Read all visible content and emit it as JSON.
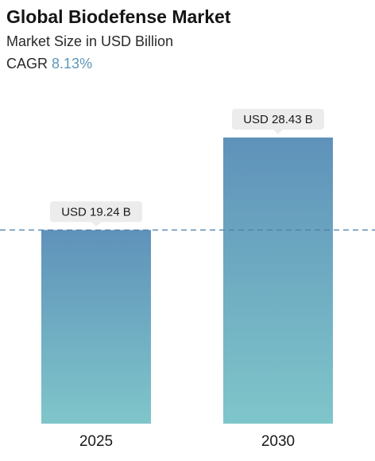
{
  "header": {
    "title": "Global Biodefense Market",
    "subtitle": "Market Size in USD Billion",
    "cagr_label": "CAGR",
    "cagr_value": "8.13%"
  },
  "colors": {
    "bar_top": "#5f92ba",
    "bar_bottom": "#7fc6ca",
    "reference_line": "#4a7fa8",
    "label_bg": "#ececec",
    "cagr_accent": "#5d97b8"
  },
  "chart_data": {
    "type": "bar",
    "categories": [
      "2025",
      "2030"
    ],
    "values": [
      19.24,
      28.43
    ],
    "data_labels": [
      "USD 19.24 B",
      "USD 28.43 B"
    ],
    "reference_line_value": 19.24,
    "ylim": [
      0,
      28.43
    ],
    "grid": false,
    "legend": "none"
  }
}
